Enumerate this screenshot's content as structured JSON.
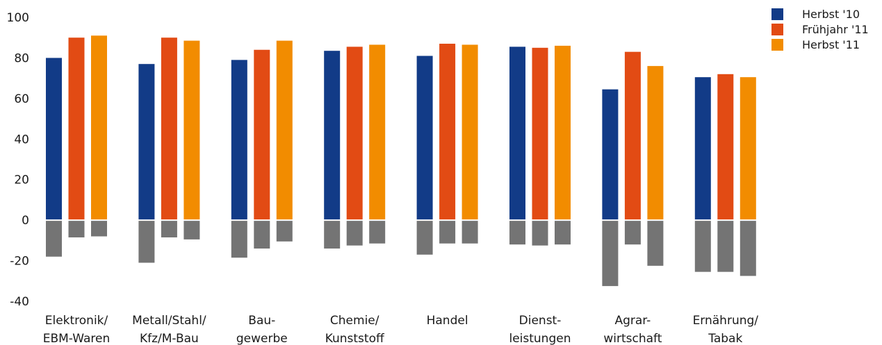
{
  "chart_data": {
    "type": "bar",
    "categories": [
      [
        "Elektronik/",
        "EBM-Waren"
      ],
      [
        "Metall/Stahl/",
        "Kfz/M-Bau"
      ],
      [
        "Bau-",
        "gewerbe"
      ],
      [
        "Chemie/",
        "Kunststoff"
      ],
      [
        "Handel"
      ],
      [
        "Dienst-",
        "leistungen"
      ],
      [
        "Agrar-",
        "wirtschaft"
      ],
      [
        "Ernährung/",
        "Tabak"
      ]
    ],
    "series": [
      {
        "name": "Herbst '10",
        "color": "#123b87",
        "values": [
          80,
          77,
          79,
          83.5,
          81,
          85.5,
          64.5,
          70.5
        ],
        "negative": [
          -18,
          -21,
          -18.5,
          -14,
          -17,
          -12,
          -32.5,
          -25.5
        ]
      },
      {
        "name": "Frühjahr '11",
        "color": "#e24b14",
        "values": [
          90,
          90,
          84,
          85.5,
          87,
          85,
          83,
          72
        ],
        "negative": [
          -8.5,
          -8.5,
          -14,
          -12.5,
          -11.5,
          -12.5,
          -12,
          -25.5
        ]
      },
      {
        "name": "Herbst '11",
        "color": "#f28c00",
        "values": [
          91,
          88.5,
          88.5,
          86.5,
          86.5,
          86,
          76,
          70.5
        ],
        "negative": [
          -8,
          -9.5,
          -10.5,
          -11.5,
          -11.5,
          -12,
          -22.5,
          -27.5
        ]
      }
    ],
    "negative_color": "#747474",
    "ylim": [
      -40,
      100
    ],
    "yticks": [
      "-40",
      "-20",
      "0",
      "20",
      "40",
      "60",
      "80",
      "100"
    ],
    "grid": false,
    "legend": "top-right"
  }
}
